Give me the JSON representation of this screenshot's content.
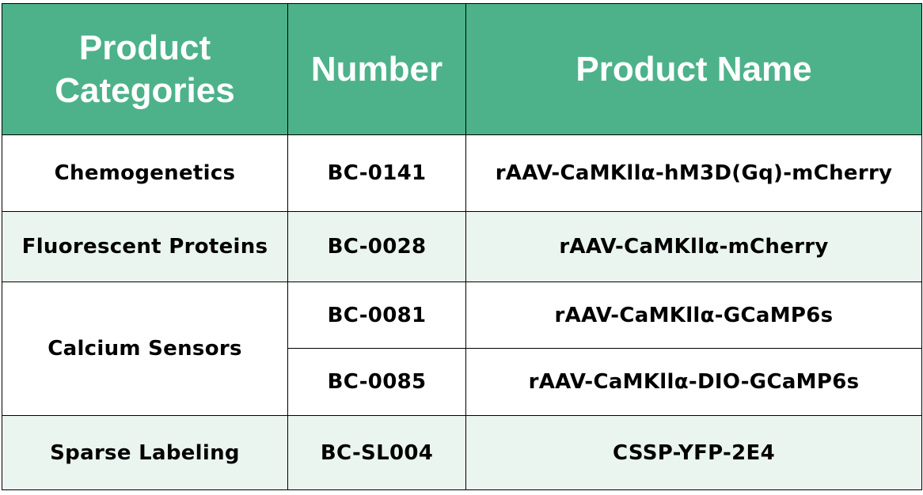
{
  "colors": {
    "header_bg": "#4db28a",
    "header_text": "#ffffff",
    "alt_row_bg": "#ebf5f0"
  },
  "headers": [
    "Product Categories",
    "Number",
    "Product Name"
  ],
  "rows": [
    {
      "category": "Chemogenetics",
      "items": [
        {
          "number": "BC-0141",
          "name": "rAAV-CaMKllα-hM3D(Gq)-mCherry"
        }
      ]
    },
    {
      "category": "Fluorescent Proteins",
      "items": [
        {
          "number": "BC-0028",
          "name": "rAAV-CaMKllα-mCherry"
        }
      ]
    },
    {
      "category": "Calcium Sensors",
      "items": [
        {
          "number": "BC-0081",
          "name": "rAAV-CaMKllα-GCaMP6s"
        },
        {
          "number": "BC-0085",
          "name": "rAAV-CaMKllα-DIO-GCaMP6s"
        }
      ]
    },
    {
      "category": "Sparse Labeling",
      "items": [
        {
          "number": "BC-SL004",
          "name": "CSSP-YFP-2E4"
        }
      ]
    }
  ]
}
